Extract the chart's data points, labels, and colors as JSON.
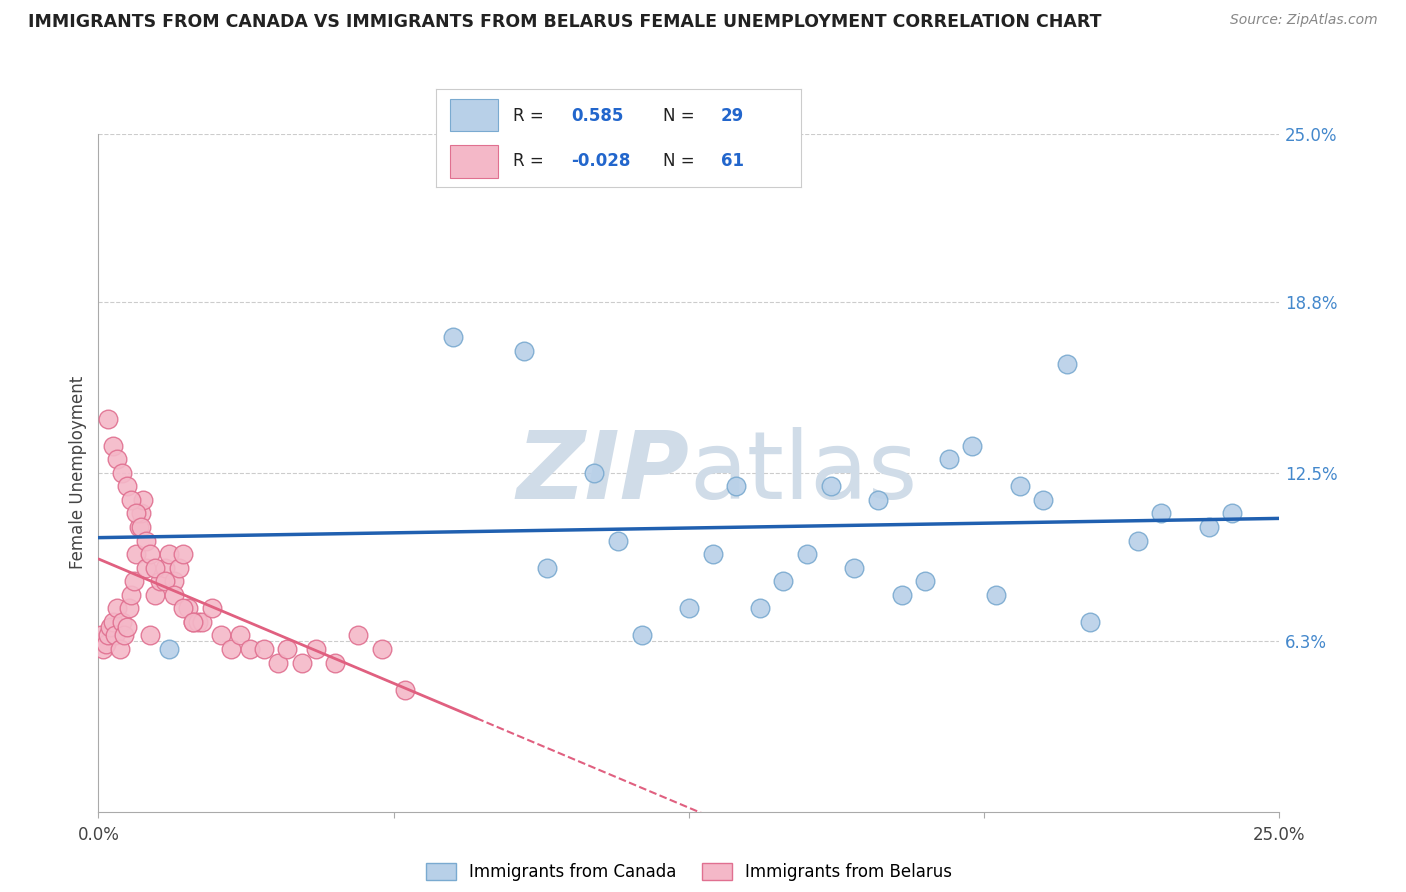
{
  "title": "IMMIGRANTS FROM CANADA VS IMMIGRANTS FROM BELARUS FEMALE UNEMPLOYMENT CORRELATION CHART",
  "source": "Source: ZipAtlas.com",
  "ylabel": "Female Unemployment",
  "xlim": [
    0.0,
    25.0
  ],
  "ylim": [
    0.0,
    25.0
  ],
  "yticks_right": [
    6.3,
    12.5,
    18.8,
    25.0
  ],
  "ytick_labels_right": [
    "6.3%",
    "12.5%",
    "18.8%",
    "25.0%"
  ],
  "canada_color": "#b8d0e8",
  "canada_edge_color": "#7aaad0",
  "canada_line_color": "#2060b0",
  "belarus_color": "#f4b8c8",
  "belarus_edge_color": "#e07090",
  "belarus_line_color": "#e06080",
  "watermark_color": "#d0dce8",
  "legend_r_canada": "0.585",
  "legend_n_canada": "29",
  "legend_r_belarus": "-0.028",
  "legend_n_belarus": "61",
  "canada_x": [
    1.5,
    7.5,
    9.0,
    10.5,
    11.5,
    13.0,
    14.5,
    15.5,
    16.5,
    17.0,
    18.5,
    19.5,
    20.5,
    21.0,
    22.5,
    23.5,
    9.5,
    11.0,
    12.5,
    14.0,
    15.0,
    16.0,
    17.5,
    18.0,
    19.0,
    20.0,
    22.0,
    24.0,
    13.5
  ],
  "canada_y": [
    6.0,
    17.5,
    17.0,
    12.5,
    6.5,
    9.5,
    8.5,
    12.0,
    11.5,
    8.0,
    13.5,
    12.0,
    16.5,
    7.0,
    11.0,
    10.5,
    9.0,
    10.0,
    7.5,
    7.5,
    9.5,
    9.0,
    8.5,
    13.0,
    8.0,
    11.5,
    10.0,
    11.0,
    12.0
  ],
  "belarus_x": [
    0.05,
    0.1,
    0.15,
    0.2,
    0.25,
    0.3,
    0.35,
    0.4,
    0.45,
    0.5,
    0.55,
    0.6,
    0.65,
    0.7,
    0.75,
    0.8,
    0.85,
    0.9,
    0.95,
    1.0,
    1.1,
    1.2,
    1.3,
    1.4,
    1.5,
    1.6,
    1.7,
    1.8,
    1.9,
    2.0,
    2.1,
    2.2,
    2.4,
    2.6,
    2.8,
    3.0,
    3.2,
    3.5,
    3.8,
    4.0,
    4.3,
    4.6,
    5.0,
    5.5,
    6.0,
    0.2,
    0.3,
    0.4,
    0.5,
    0.6,
    0.7,
    0.8,
    0.9,
    1.0,
    1.1,
    1.2,
    1.4,
    1.6,
    1.8,
    2.0,
    6.5
  ],
  "belarus_y": [
    6.5,
    6.0,
    6.2,
    6.5,
    6.8,
    7.0,
    6.5,
    7.5,
    6.0,
    7.0,
    6.5,
    6.8,
    7.5,
    8.0,
    8.5,
    9.5,
    10.5,
    11.0,
    11.5,
    9.0,
    6.5,
    8.0,
    8.5,
    9.0,
    9.5,
    8.5,
    9.0,
    9.5,
    7.5,
    7.0,
    7.0,
    7.0,
    7.5,
    6.5,
    6.0,
    6.5,
    6.0,
    6.0,
    5.5,
    6.0,
    5.5,
    6.0,
    5.5,
    6.5,
    6.0,
    14.5,
    13.5,
    13.0,
    12.5,
    12.0,
    11.5,
    11.0,
    10.5,
    10.0,
    9.5,
    9.0,
    8.5,
    8.0,
    7.5,
    7.0,
    4.5
  ]
}
